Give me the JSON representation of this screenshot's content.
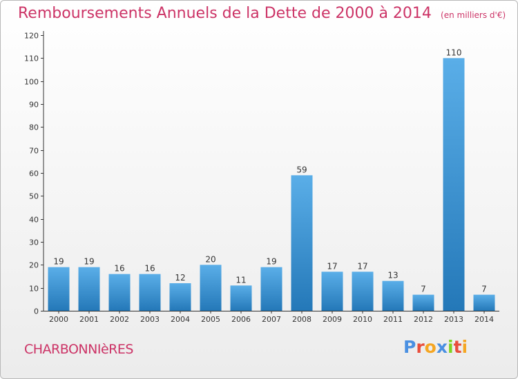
{
  "title": {
    "main": "Remboursements Annuels de la Dette de 2000 à 2014",
    "unit": "(en milliers d'€)"
  },
  "commune": "CHARBONNIèRES",
  "logo": {
    "letters": [
      "P",
      "r",
      "o",
      "x",
      "i",
      "t",
      "i"
    ],
    "colors": [
      "#4a90e2",
      "#e94e3c",
      "#f5a623",
      "#4a90e2",
      "#7ed321",
      "#e94e3c",
      "#f5a623"
    ]
  },
  "chart_data": {
    "type": "bar",
    "categories": [
      "2000",
      "2001",
      "2002",
      "2003",
      "2004",
      "2005",
      "2006",
      "2007",
      "2008",
      "2009",
      "2010",
      "2011",
      "2012",
      "2013",
      "2014"
    ],
    "values": [
      19,
      19,
      16,
      16,
      12,
      20,
      11,
      19,
      59,
      17,
      17,
      13,
      7,
      110,
      7
    ],
    "data_labels": [
      "19",
      "19",
      "16",
      "16",
      "12",
      "20",
      "11",
      "19",
      "59",
      "17",
      "17",
      "13",
      "7",
      "110",
      "7"
    ],
    "ylim": [
      0,
      120
    ],
    "yticks": [
      0,
      10,
      20,
      30,
      40,
      50,
      60,
      70,
      80,
      90,
      100,
      110,
      120
    ],
    "grid": false,
    "bar_color_top": "#5aaee8",
    "bar_color_bottom": "#2478b8",
    "axis_color": "#333333",
    "text_color": "#cc3366"
  }
}
